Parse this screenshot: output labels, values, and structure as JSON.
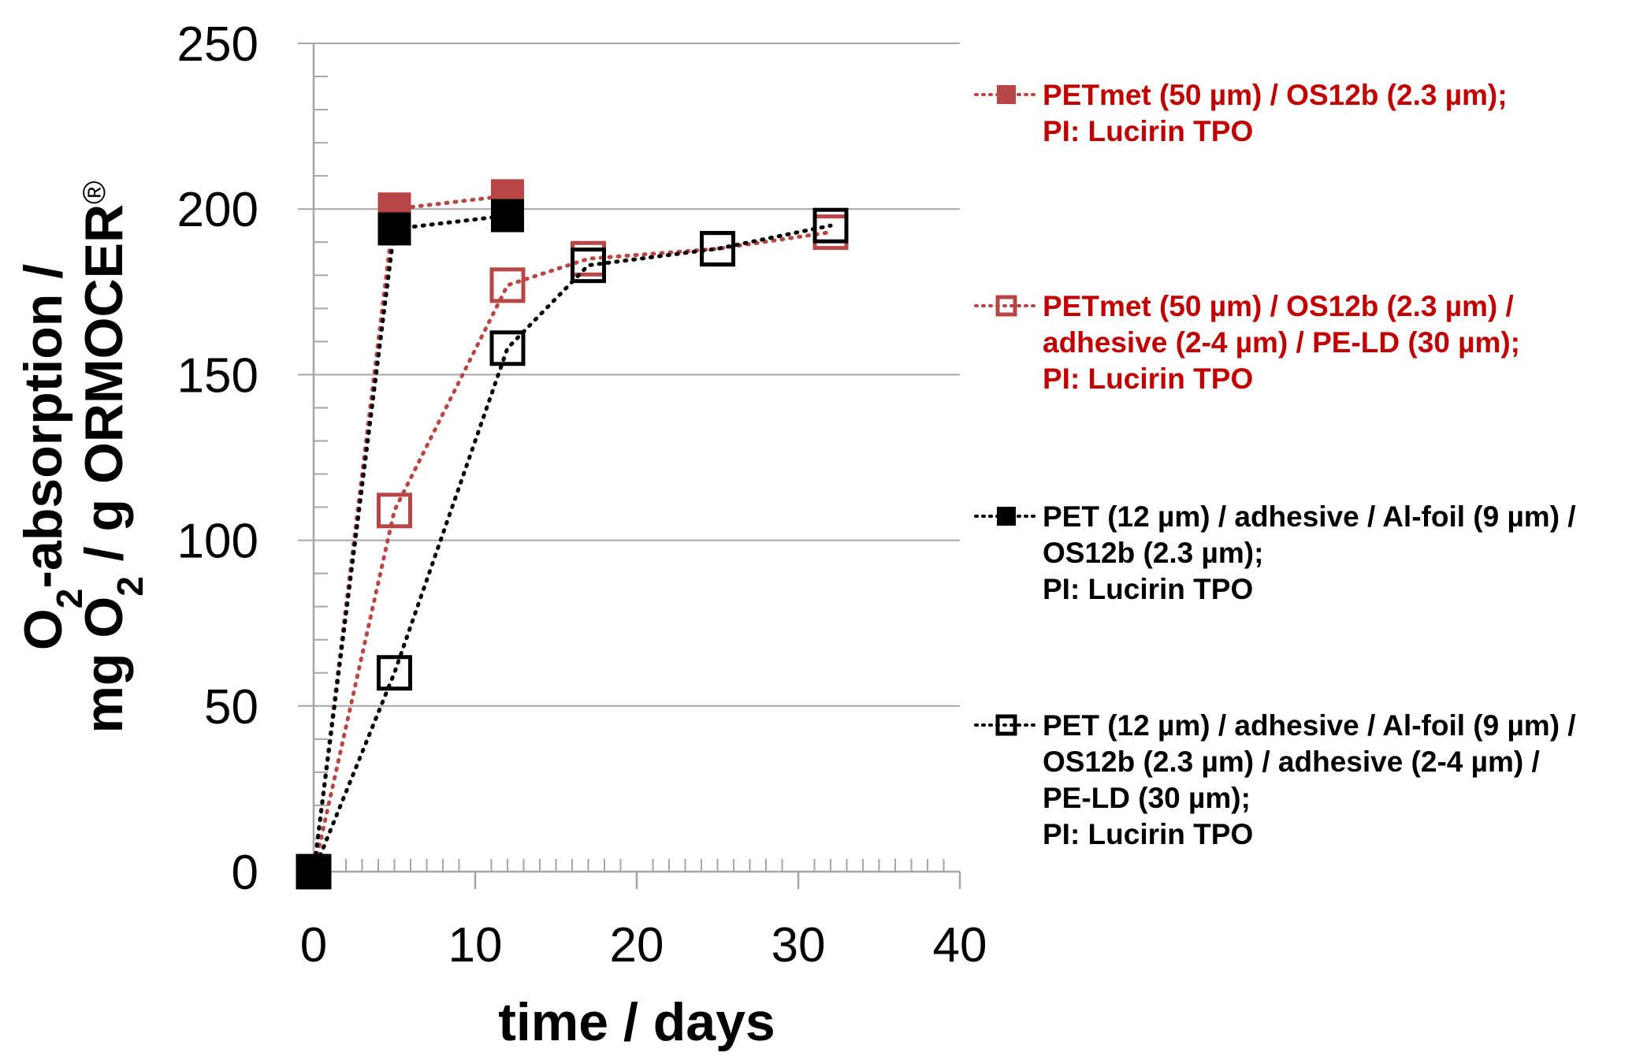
{
  "chart_data": {
    "type": "line",
    "title": "",
    "xlabel": "time / days",
    "ylabel_line1": "O2-absorption /",
    "ylabel_line2": "mg O2 / g ORMOCER®",
    "xlim": [
      0,
      40
    ],
    "ylim": [
      0,
      250
    ],
    "x_ticks": [
      "0",
      "10",
      "20",
      "30",
      "40"
    ],
    "y_ticks": [
      "0",
      "50",
      "100",
      "150",
      "200",
      "250"
    ],
    "grid": "horizontal",
    "legend_position": "right",
    "series": [
      {
        "name_lines": [
          "PETmet (50 µm) / OS12b (2.3 µm);",
          "PI: Lucirin TPO"
        ],
        "color": "#b84646",
        "label_color": "#c00000",
        "marker": "filled-square",
        "points": [
          [
            0,
            0
          ],
          [
            5,
            200
          ],
          [
            12,
            204
          ]
        ]
      },
      {
        "name_lines": [
          "PETmet (50 µm) / OS12b (2.3 µm) /",
          "adhesive (2-4 µm) / PE-LD (30 µm);",
          "PI: Lucirin TPO"
        ],
        "color": "#b84646",
        "label_color": "#c00000",
        "marker": "open-square",
        "points": [
          [
            0,
            0
          ],
          [
            5,
            109
          ],
          [
            12,
            177
          ],
          [
            17,
            185
          ],
          [
            25,
            188
          ],
          [
            32,
            193
          ]
        ]
      },
      {
        "name_lines": [
          "PET (12 µm) / adhesive / Al-foil (9 µm) /",
          "OS12b (2.3 µm);",
          "PI: Lucirin TPO"
        ],
        "color": "#000000",
        "label_color": "#000000",
        "marker": "filled-square",
        "points": [
          [
            0,
            0
          ],
          [
            5,
            194
          ],
          [
            12,
            198
          ]
        ]
      },
      {
        "name_lines": [
          "PET (12 µm) / adhesive / Al-foil (9 µm) /",
          "OS12b (2.3 µm) / adhesive (2-4 µm) /",
          "PE-LD (30 µm);",
          "PI: Lucirin TPO"
        ],
        "color": "#000000",
        "label_color": "#000000",
        "marker": "open-square",
        "points": [
          [
            0,
            0
          ],
          [
            5,
            60
          ],
          [
            12,
            158
          ],
          [
            17,
            183
          ],
          [
            25,
            188
          ],
          [
            32,
            195
          ]
        ]
      }
    ]
  }
}
